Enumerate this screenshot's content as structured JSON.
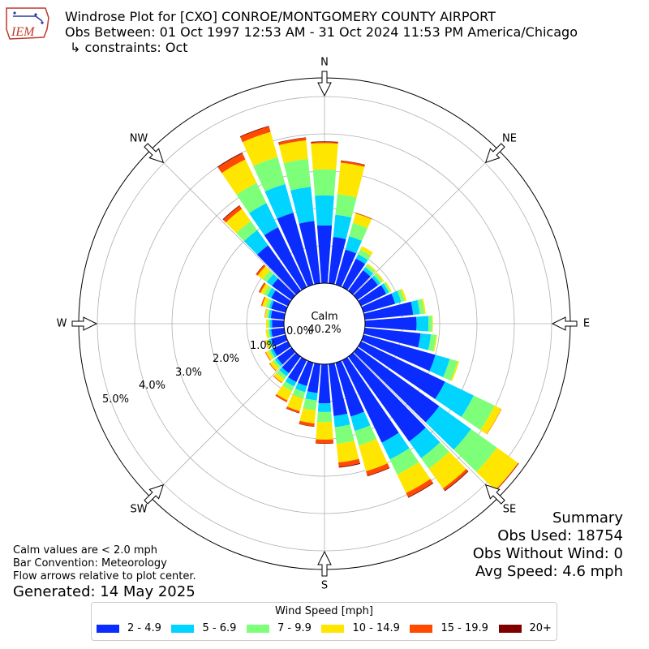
{
  "header": {
    "title": "Windrose Plot for [CXO] CONROE/MONTGOMERY COUNTY AIRPORT",
    "subtitle": "Obs Between: 01 Oct 1997 12:53 AM - 31 Oct 2024 11:53 PM America/Chicago",
    "constraints": "↳ constraints: Oct",
    "logo_text": "IEM"
  },
  "compass": {
    "N": "N",
    "NE": "NE",
    "E": "E",
    "SE": "SE",
    "S": "S",
    "SW": "SW",
    "W": "W",
    "NW": "NW"
  },
  "rings": [
    "0.0%",
    "1.0%",
    "2.0%",
    "3.0%",
    "4.0%",
    "5.0%"
  ],
  "calm": {
    "label": "Calm",
    "value": "40.2%"
  },
  "summary": {
    "heading": "Summary",
    "obs_used": "Obs Used: 18754",
    "obs_without_wind": "Obs Without Wind: 0",
    "avg_speed": "Avg Speed: 4.6 mph"
  },
  "notes": {
    "line1": "Calm values are < 2.0 mph",
    "line2": "Bar Convention: Meteorology",
    "line3": "Flow arrows relative to plot center.",
    "generated": "Generated: 14 May 2025"
  },
  "legend": {
    "title": "Wind Speed [mph]",
    "items": [
      {
        "label": "2 - 4.9",
        "color": "#0a2cff"
      },
      {
        "label": "5 - 6.9",
        "color": "#00d4ff"
      },
      {
        "label": "7 - 9.9",
        "color": "#7dff7a"
      },
      {
        "label": "10 - 14.9",
        "color": "#ffe600"
      },
      {
        "label": "15 - 19.9",
        "color": "#ff4a00"
      },
      {
        "label": "20+",
        "color": "#800000"
      }
    ]
  },
  "chart_data": {
    "type": "windrose",
    "units": "percent of observations",
    "rmax": 5.5,
    "ring_values": [
      0,
      1,
      2,
      3,
      4,
      5
    ],
    "directions_deg": [
      0,
      10,
      20,
      30,
      40,
      50,
      60,
      70,
      80,
      90,
      100,
      110,
      120,
      130,
      140,
      150,
      160,
      170,
      180,
      190,
      200,
      210,
      220,
      230,
      240,
      250,
      260,
      270,
      280,
      290,
      300,
      310,
      320,
      330,
      340,
      350
    ],
    "bins": [
      "2 - 4.9",
      "5 - 6.9",
      "7 - 9.9",
      "10 - 14.9",
      "15 - 19.9",
      "20+"
    ],
    "cumulative": [
      [
        1.55,
        2.35,
        3.05,
        3.75,
        3.78,
        3.8
      ],
      [
        1.25,
        1.85,
        2.4,
        3.25,
        3.3,
        3.31
      ],
      [
        0.98,
        1.35,
        1.72,
        1.98,
        2.0,
        2.0
      ],
      [
        0.85,
        0.98,
        1.12,
        1.22,
        1.22,
        1.22
      ],
      [
        0.68,
        0.78,
        0.86,
        0.9,
        0.9,
        0.9
      ],
      [
        0.68,
        0.76,
        0.84,
        0.88,
        0.88,
        0.88
      ],
      [
        0.75,
        0.83,
        0.88,
        0.91,
        0.91,
        0.91
      ],
      [
        0.88,
        1.05,
        1.15,
        1.2,
        1.2,
        1.2
      ],
      [
        1.3,
        1.48,
        1.6,
        1.64,
        1.64,
        1.64
      ],
      [
        1.38,
        1.7,
        1.8,
        1.82,
        1.82,
        1.82
      ],
      [
        1.5,
        1.78,
        1.92,
        1.95,
        1.95,
        1.95
      ],
      [
        2.0,
        2.4,
        2.62,
        2.66,
        2.66,
        2.66
      ],
      [
        2.5,
        3.35,
        3.97,
        4.17,
        4.18,
        4.18
      ],
      [
        2.7,
        3.75,
        4.6,
        5.3,
        5.32,
        5.33
      ],
      [
        2.8,
        3.35,
        3.7,
        4.35,
        4.42,
        4.44
      ],
      [
        2.45,
        2.95,
        3.4,
        3.95,
        4.07,
        4.09
      ],
      [
        1.5,
        1.9,
        2.3,
        3.02,
        3.14,
        3.16
      ],
      [
        1.4,
        1.7,
        2.15,
        2.65,
        2.77,
        2.79
      ],
      [
        1.05,
        1.28,
        1.55,
        2.02,
        2.12,
        2.13
      ],
      [
        0.78,
        0.98,
        1.25,
        1.6,
        1.68,
        1.69
      ],
      [
        0.65,
        0.82,
        1.0,
        1.35,
        1.4,
        1.41
      ],
      [
        0.65,
        0.78,
        0.92,
        1.2,
        1.25,
        1.25
      ],
      [
        0.55,
        0.65,
        0.75,
        0.86,
        0.88,
        0.88
      ],
      [
        0.48,
        0.55,
        0.62,
        0.72,
        0.74,
        0.74
      ],
      [
        0.45,
        0.52,
        0.58,
        0.66,
        0.68,
        0.68
      ],
      [
        0.4,
        0.45,
        0.5,
        0.56,
        0.57,
        0.57
      ],
      [
        0.35,
        0.4,
        0.45,
        0.5,
        0.5,
        0.5
      ],
      [
        0.32,
        0.38,
        0.43,
        0.48,
        0.48,
        0.48
      ],
      [
        0.36,
        0.42,
        0.47,
        0.52,
        0.53,
        0.53
      ],
      [
        0.4,
        0.46,
        0.55,
        0.65,
        0.68,
        0.68
      ],
      [
        0.5,
        0.62,
        0.72,
        0.82,
        0.86,
        0.87
      ],
      [
        0.65,
        0.82,
        0.95,
        1.12,
        1.17,
        1.18
      ],
      [
        1.5,
        2.0,
        2.3,
        2.7,
        2.8,
        2.82
      ],
      [
        1.78,
        2.5,
        3.1,
        3.8,
        3.98,
        4.0
      ],
      [
        2.0,
        2.8,
        3.55,
        4.25,
        4.4,
        4.42
      ],
      [
        1.68,
        2.6,
        3.35,
        3.85,
        3.92,
        3.93
      ]
    ]
  }
}
